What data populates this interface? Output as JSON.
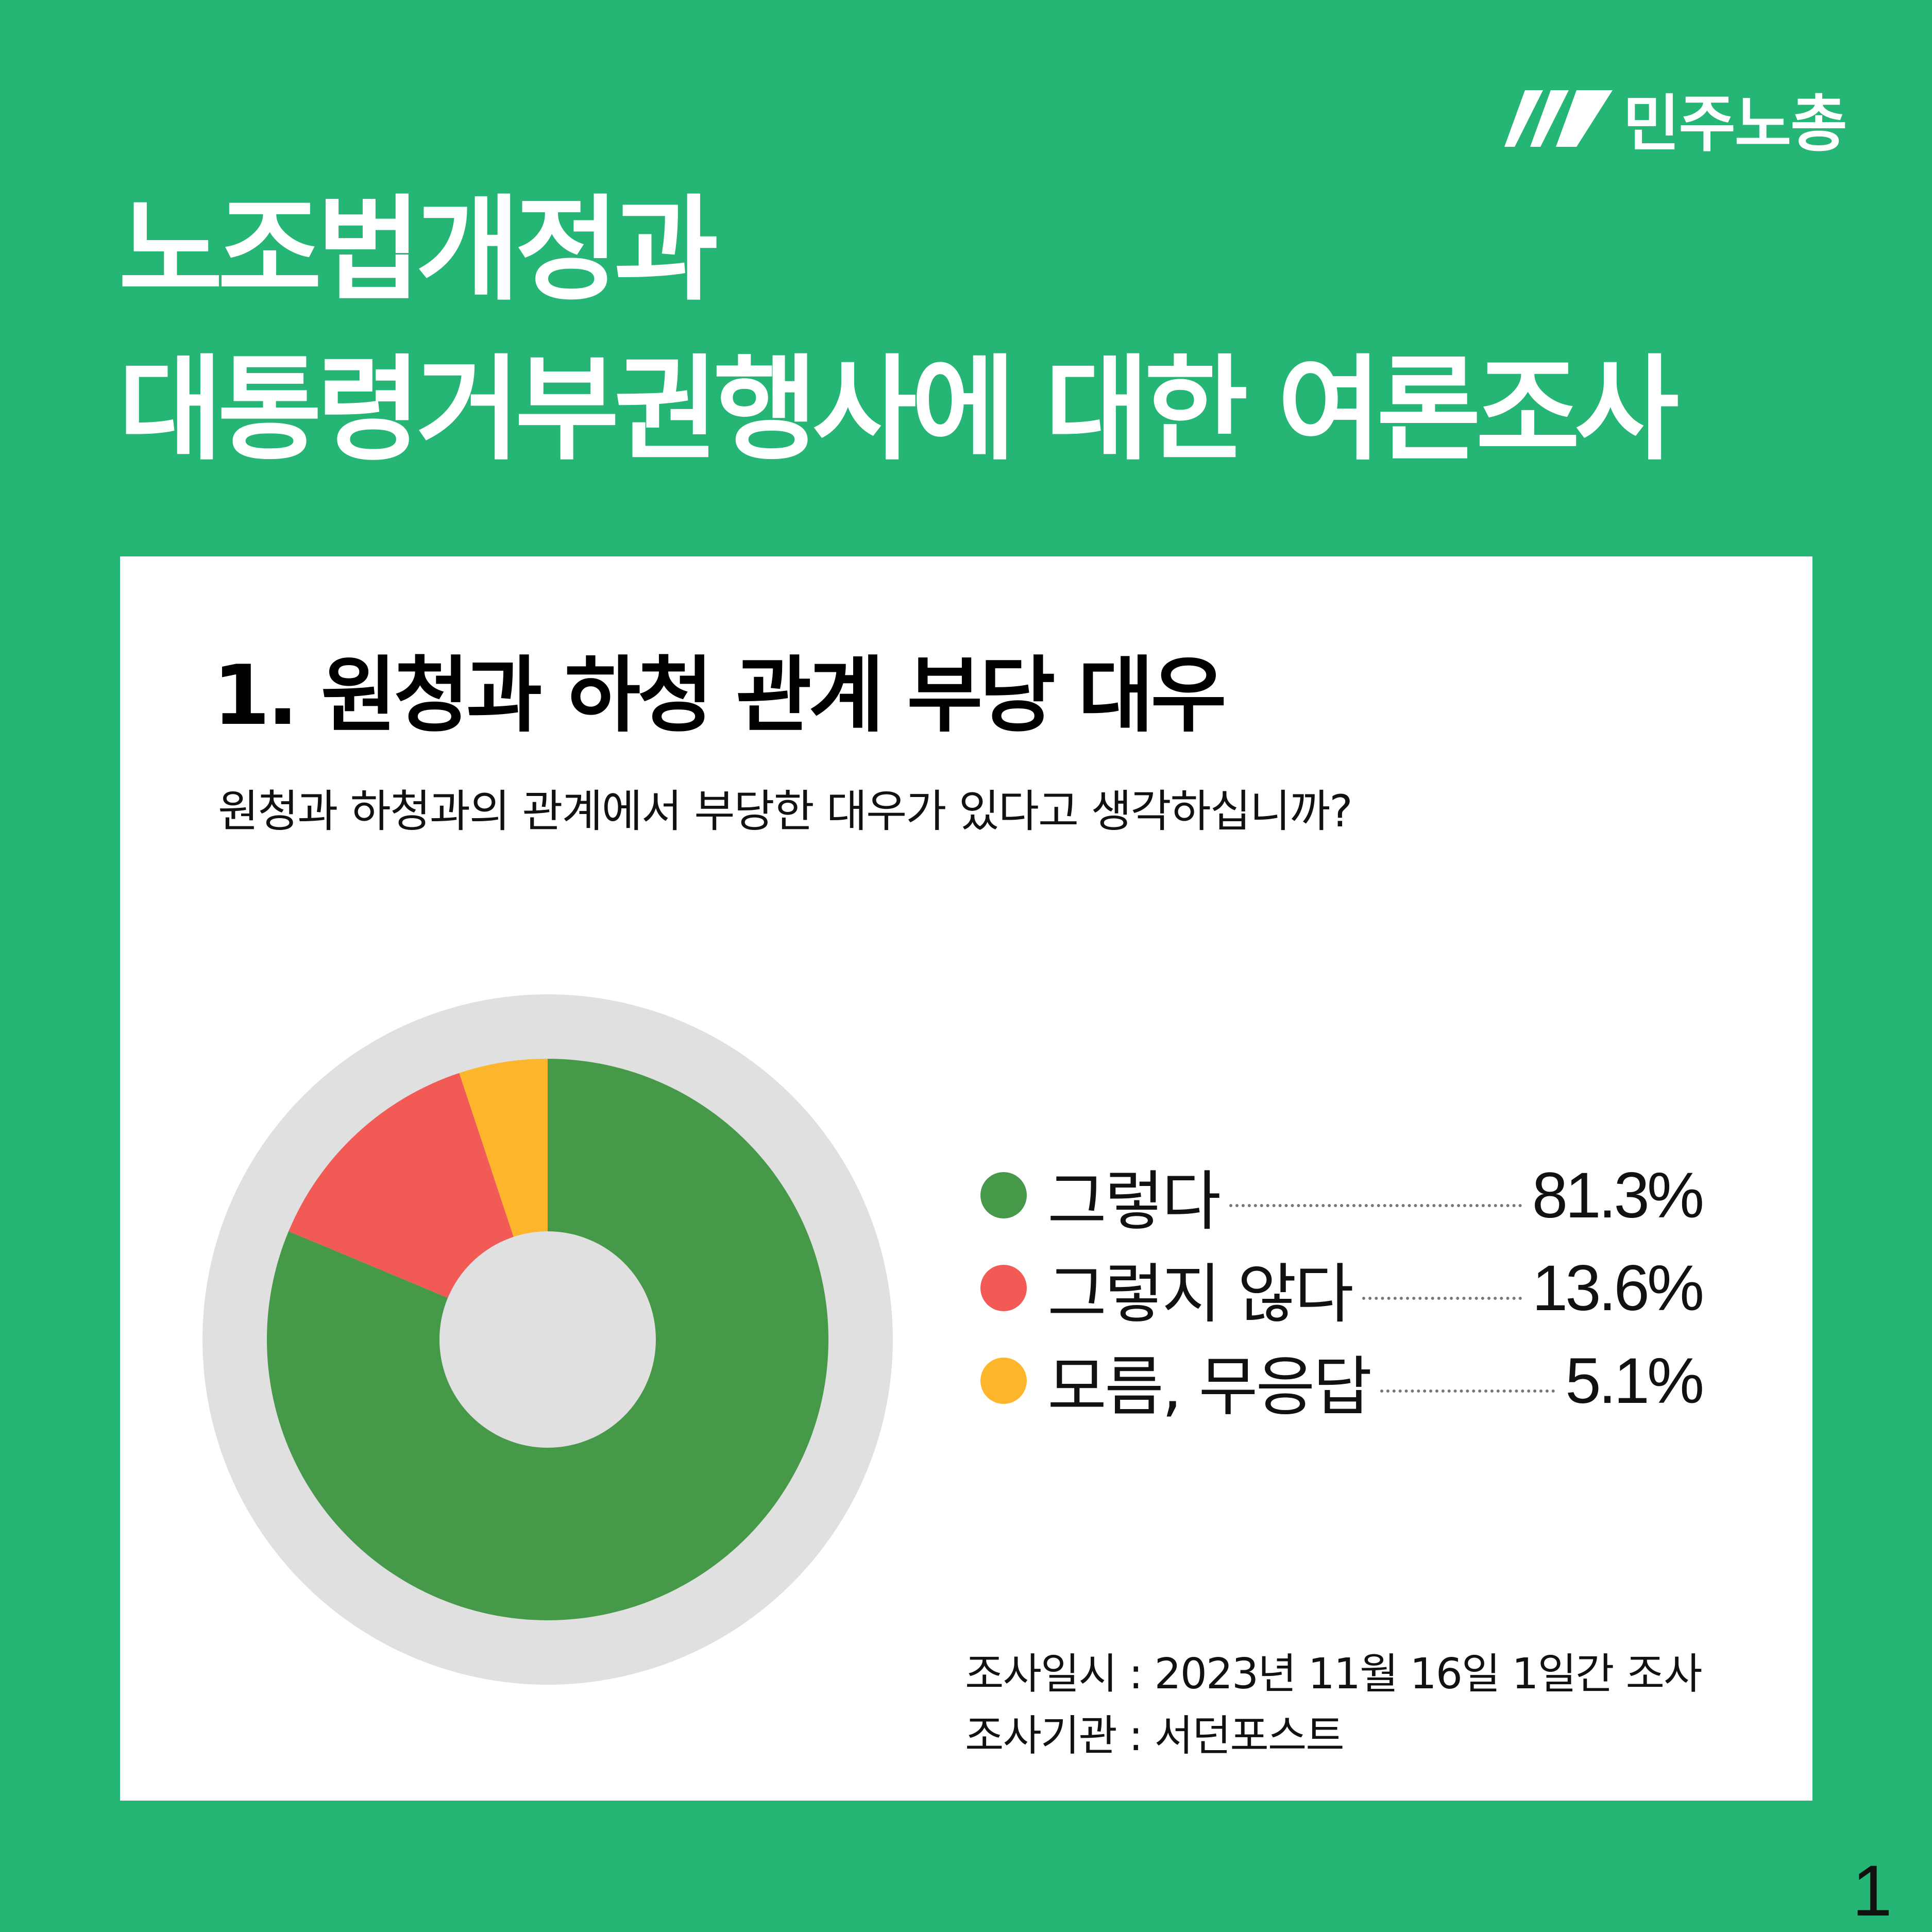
{
  "brand": {
    "name": "민주노총",
    "color": "#FFFFFF"
  },
  "title": {
    "line1": "노조법개정과",
    "line2": "대통령거부권행사에 대한 여론조사"
  },
  "section": {
    "title": "1. 원청과 하청 관계 부당 대우",
    "question": "원청과 하청과의 관계에서 부당한 대우가 있다고 생각하십니까?"
  },
  "chart_data": {
    "type": "pie",
    "style": "donut",
    "categories": [
      "그렇다",
      "그렇지 않다",
      "모름, 무응답"
    ],
    "values": [
      81.3,
      13.6,
      5.1
    ],
    "value_labels": [
      "81.3%",
      "13.6%",
      "5.1%"
    ],
    "colors": [
      "#47994A",
      "#F25A55",
      "#FDB52B"
    ],
    "legend_position": "right",
    "title": "1. 원청과 하청 관계 부당 대우"
  },
  "footnote": {
    "date": "조사일시 : 2023년 11월 16일 1일간 조사",
    "org": "조사기관 : 서던포스트"
  },
  "page_number": "1",
  "colors": {
    "background": "#25B574",
    "card": "#FFFFFF",
    "donut_track": "#E0E0E0"
  }
}
